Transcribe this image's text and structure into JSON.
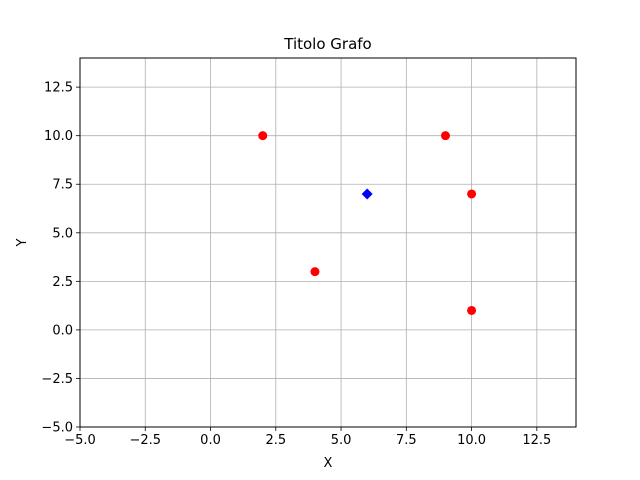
{
  "chart_data": {
    "type": "scatter",
    "title": "Titolo Grafo",
    "xlabel": "X",
    "ylabel": "Y",
    "xlim": [
      -5,
      14
    ],
    "ylim": [
      -5,
      14
    ],
    "xticks": [
      -5.0,
      -2.5,
      0.0,
      2.5,
      5.0,
      7.5,
      10.0,
      12.5
    ],
    "yticks": [
      -5.0,
      -2.5,
      0.0,
      2.5,
      5.0,
      7.5,
      10.0,
      12.5
    ],
    "xtick_labels": [
      "−5.0",
      "−2.5",
      "0.0",
      "2.5",
      "5.0",
      "7.5",
      "10.0",
      "12.5"
    ],
    "ytick_labels": [
      "−5.0",
      "−2.5",
      "0.0",
      "2.5",
      "5.0",
      "7.5",
      "10.0",
      "12.5"
    ],
    "grid": true,
    "series": [
      {
        "marker": "circle",
        "color": "#ff0000",
        "points": [
          {
            "x": 2,
            "y": 10
          },
          {
            "x": 9,
            "y": 10
          },
          {
            "x": 10,
            "y": 7
          },
          {
            "x": 4,
            "y": 3
          },
          {
            "x": 10,
            "y": 1
          }
        ]
      },
      {
        "marker": "diamond",
        "color": "#0000ff",
        "points": [
          {
            "x": 6,
            "y": 7
          }
        ]
      }
    ]
  }
}
